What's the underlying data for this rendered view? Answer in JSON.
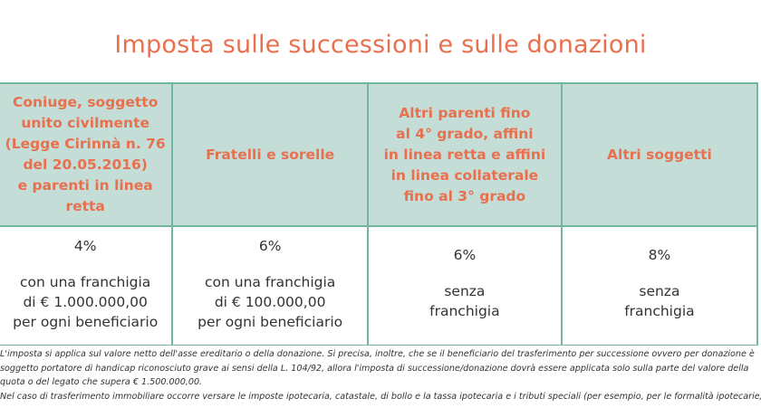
{
  "title": "Imposta sulle successioni e sulle donazioni",
  "table": {
    "headers": [
      "Coniuge, soggetto unito civilmente (Legge Cirinnà n. 76 del 20.05.2016) e parenti in linea retta",
      "Fratelli e sorelle",
      "Altri parenti fino al 4° grado, affini in linea retta e affini in linea collaterale fino al 3° grado",
      "Altri soggetti"
    ],
    "header_lines": [
      [
        "Coniuge, soggetto",
        "unito civilmente",
        "(Legge Cirinnà n. 76",
        "del 20.05.2016)",
        "e parenti in linea retta"
      ],
      [
        "Fratelli e sorelle"
      ],
      [
        "Altri parenti fino",
        "al 4° grado, affini",
        "in linea retta e affini",
        "in linea collaterale",
        "fino al 3° grado"
      ],
      [
        "Altri soggetti"
      ]
    ],
    "rows": [
      {
        "rate": "4%",
        "lines": [
          "con una franchigia",
          "di € 1.000.000,00",
          "per ogni beneficiario"
        ]
      },
      {
        "rate": "6%",
        "lines": [
          "con una franchigia",
          "di € 100.000,00",
          "per ogni beneficiario"
        ]
      },
      {
        "rate": "6%",
        "lines": [
          "senza",
          "franchigia"
        ]
      },
      {
        "rate": "8%",
        "lines": [
          "senza",
          "franchigia"
        ]
      }
    ]
  },
  "notes": [
    "L'imposta si applica sul valore netto dell'asse ereditario o della donazione. Si precisa, inoltre, che se il beneficiario del trasferimento per successione ovvero per donazione è",
    "soggetto portatore di handicap riconosciuto grave ai sensi della L. 104/92, allora l'imposta di successione/donazione dovrà essere applicata solo sulla parte del valore della",
    "quota o del legato che supera € 1.500.000,00.",
    "Nel caso di trasferimento immobiliare occorre versare le imposte ipotecaria, catastale, di bollo e la tassa ipotecaria e i tributi speciali (per esempio, per le formalità ipotecarie)."
  ],
  "colors": {
    "accent": "#e8704f",
    "header_bg": "#c4ddd6",
    "border": "#73b7a3"
  }
}
